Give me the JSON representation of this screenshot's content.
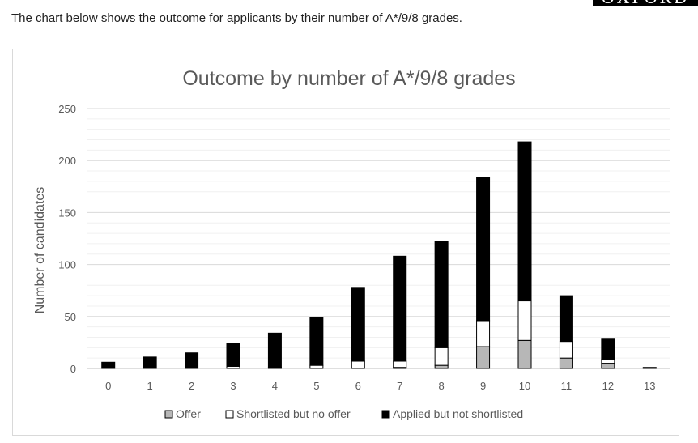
{
  "header": {
    "intro_text": "The chart below shows the outcome for applicants by their number of A*/9/8 grades.",
    "logo_text": "OXFORD"
  },
  "colors": {
    "offer": "#b7b7b7",
    "shortlisted": "#ffffff",
    "applied": "#000000",
    "grid": "#d9d9d9",
    "text": "#595959"
  },
  "chart_data": {
    "type": "bar",
    "stacked": true,
    "title": "Outcome by number of A*/9/8 grades",
    "xlabel": "",
    "ylabel": "Number of candidates",
    "ylim": [
      0,
      250
    ],
    "yticks": [
      0,
      50,
      100,
      150,
      200,
      250
    ],
    "grid": true,
    "legend_position": "bottom",
    "categories": [
      "0",
      "1",
      "2",
      "3",
      "4",
      "5",
      "6",
      "7",
      "8",
      "9",
      "10",
      "11",
      "12",
      "13"
    ],
    "series": [
      {
        "name": "Offer",
        "color": "#b7b7b7",
        "values": [
          0,
          0,
          0,
          0,
          0,
          0,
          0,
          1,
          3,
          21,
          27,
          10,
          5,
          0
        ]
      },
      {
        "name": "Shortlisted but no offer",
        "color": "#ffffff",
        "values": [
          0,
          0,
          0,
          2,
          1,
          3,
          7,
          6,
          17,
          25,
          38,
          16,
          4,
          0
        ]
      },
      {
        "name": "Applied but not shortlisted",
        "color": "#000000",
        "values": [
          6,
          11,
          15,
          22,
          33,
          46,
          71,
          101,
          102,
          138,
          153,
          44,
          20,
          1
        ]
      }
    ]
  }
}
